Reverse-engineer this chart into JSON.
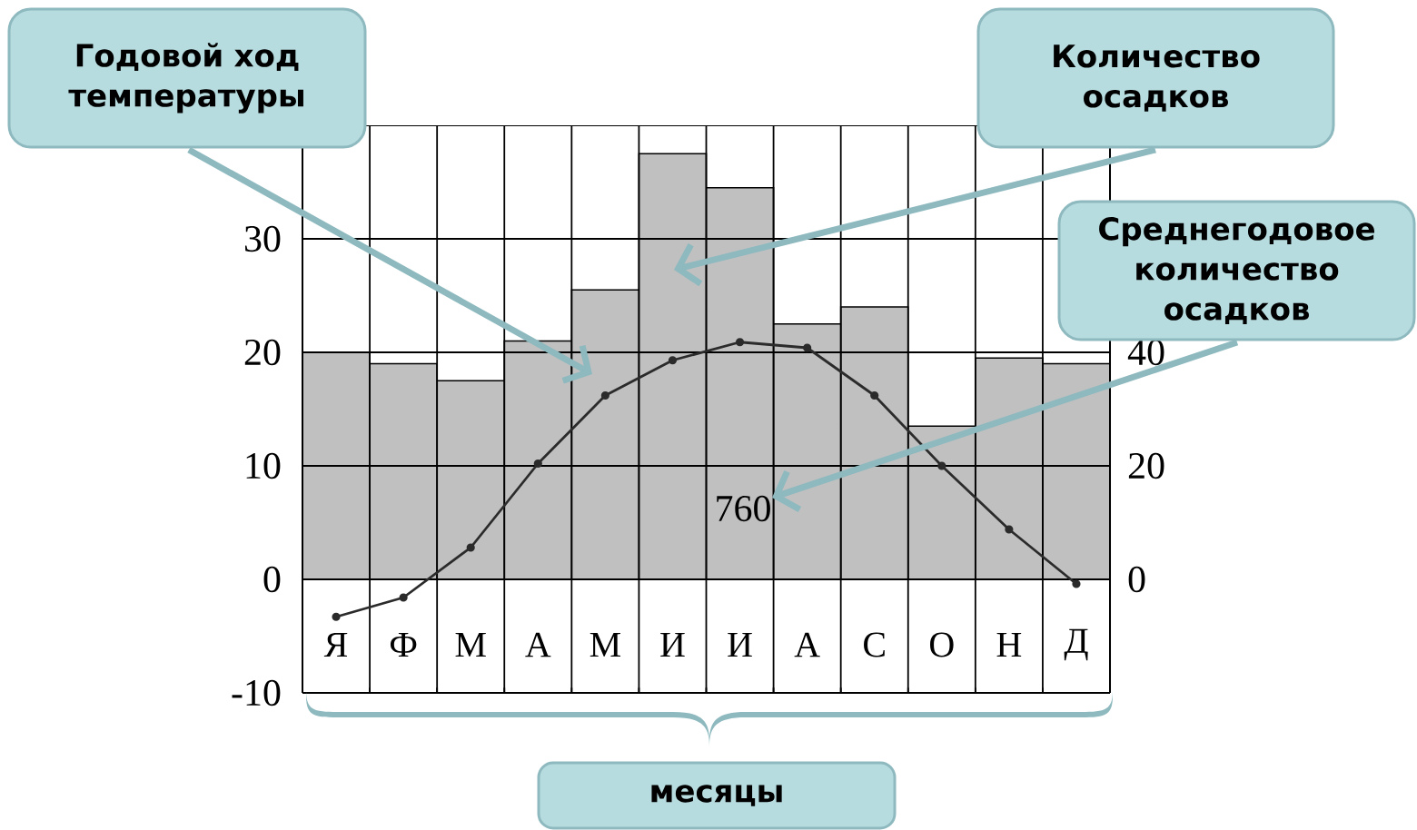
{
  "chart_data": {
    "type": "bar",
    "categories": [
      "Я",
      "Ф",
      "М",
      "А",
      "М",
      "И",
      "И",
      "А",
      "С",
      "О",
      "Н",
      "Д"
    ],
    "series": [
      {
        "axis": "y2",
        "color": "#c0c0c0",
        "values": [
          40,
          38,
          35,
          42,
          51,
          75,
          69,
          45,
          48,
          27,
          39,
          38
        ]
      },
      {
        "type": "line",
        "color": "#2b2b2b",
        "marker": "circle",
        "values": [
          -3.3,
          -1.6,
          2.8,
          10.2,
          16.2,
          19.3,
          20.9,
          20.4,
          16.2,
          10,
          4.4,
          -0.4
        ]
      }
    ],
    "xlabel": "месяцы",
    "ylim": [
      -10,
      40
    ],
    "yticks": [
      -10,
      0,
      10,
      20,
      30
    ],
    "y2lim": [
      -20,
      80
    ],
    "y2ticks": [
      0,
      20,
      40
    ],
    "grid": true,
    "annotations": [
      "Годовой ход температуры",
      "Количество осадков",
      "Среднегодовое количество осадков",
      "760"
    ]
  }
}
